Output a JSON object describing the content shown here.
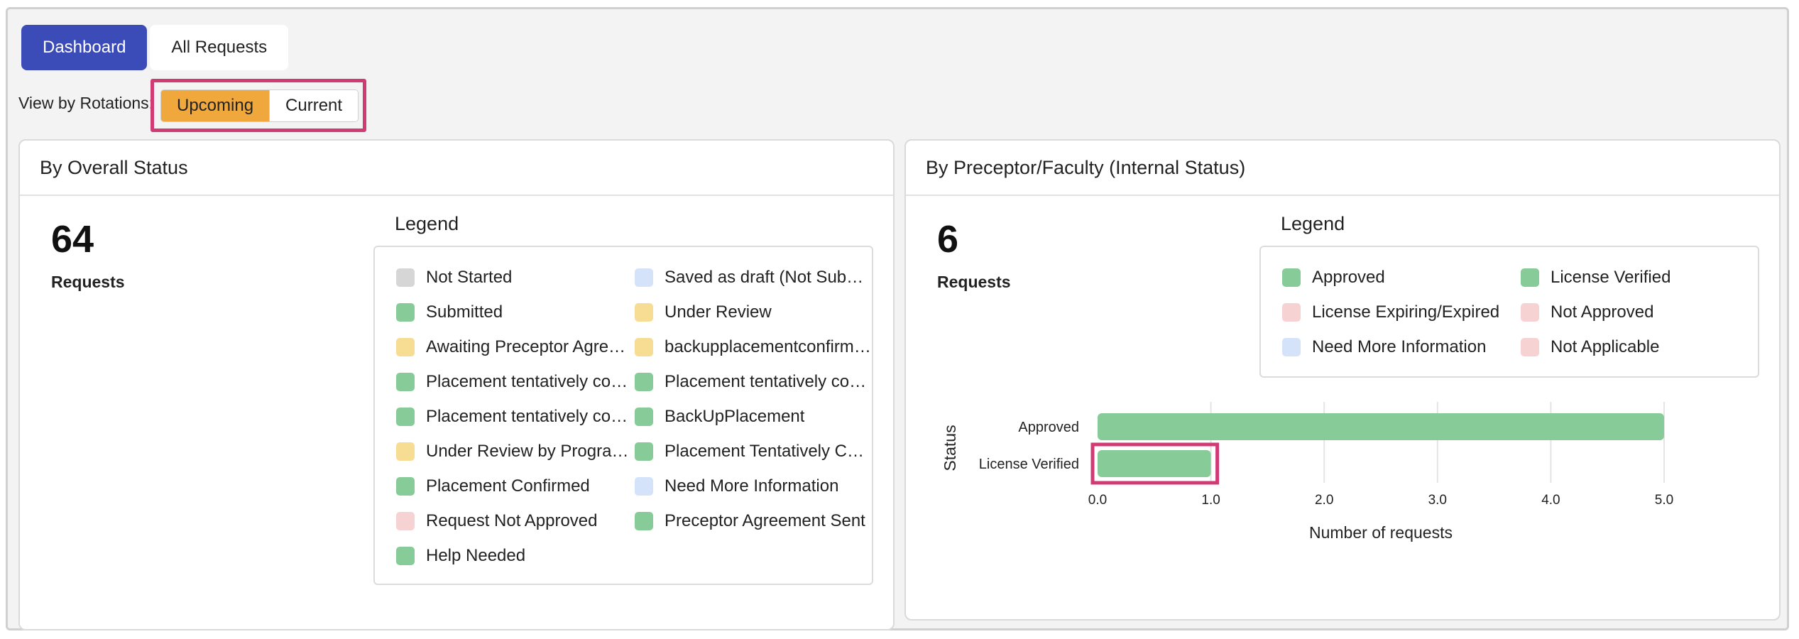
{
  "tabs": [
    {
      "label": "Dashboard",
      "active": true
    },
    {
      "label": "All Requests",
      "active": false
    }
  ],
  "rotations": {
    "label": "View by Rotations:",
    "options": [
      {
        "label": "Upcoming",
        "selected": true
      },
      {
        "label": "Current",
        "selected": false
      }
    ]
  },
  "colors": {
    "accent": "#3b4cb8",
    "selected": "#f0a73c",
    "highlight": "#d13b74",
    "green": "#86cb98",
    "yellow": "#f7dc94",
    "grey": "#d6d6d6",
    "blue": "#d4e3fa",
    "pink": "#f6d2d2"
  },
  "overall": {
    "title": "By Overall Status",
    "count": "64",
    "count_label": "Requests",
    "legend_title": "Legend",
    "legend": [
      {
        "label": "Not Started",
        "color": "#d6d6d6"
      },
      {
        "label": "Saved as draft (Not Submi…",
        "color": "#d4e3fa"
      },
      {
        "label": "Submitted",
        "color": "#86cb98"
      },
      {
        "label": "Under Review",
        "color": "#f7dc94"
      },
      {
        "label": "Awaiting Preceptor Agree…",
        "color": "#f7dc94"
      },
      {
        "label": "backupplacementconfirmed",
        "color": "#f7dc94"
      },
      {
        "label": "Placement tentatively con…",
        "color": "#86cb98"
      },
      {
        "label": "Placement tentatively con…",
        "color": "#86cb98"
      },
      {
        "label": "Placement tentatively con…",
        "color": "#86cb98"
      },
      {
        "label": "BackUpPlacement",
        "color": "#86cb98"
      },
      {
        "label": "Under Review by Program…",
        "color": "#f7dc94"
      },
      {
        "label": "Placement Tentatively Co…",
        "color": "#86cb98"
      },
      {
        "label": "Placement Confirmed",
        "color": "#86cb98"
      },
      {
        "label": "Need More Information",
        "color": "#d4e3fa"
      },
      {
        "label": "Request Not Approved",
        "color": "#f6d2d2"
      },
      {
        "label": "Preceptor Agreement Sent",
        "color": "#86cb98"
      },
      {
        "label": "Help Needed",
        "color": "#86cb98"
      }
    ]
  },
  "preceptor": {
    "title": "By Preceptor/Faculty (Internal Status)",
    "count": "6",
    "count_label": "Requests",
    "legend_title": "Legend",
    "legend": [
      {
        "label": "Approved",
        "color": "#86cb98"
      },
      {
        "label": "License Verified",
        "color": "#86cb98"
      },
      {
        "label": "License Expiring/Expired",
        "color": "#f6d2d2"
      },
      {
        "label": "Not Approved",
        "color": "#f6d2d2"
      },
      {
        "label": "Need More Information",
        "color": "#d4e3fa"
      },
      {
        "label": "Not Applicable",
        "color": "#f6d2d2"
      }
    ]
  },
  "chart_data": {
    "type": "bar",
    "orientation": "horizontal",
    "categories": [
      "Approved",
      "License Verified"
    ],
    "values": [
      5,
      1
    ],
    "xlabel": "Number of requests",
    "ylabel": "Status",
    "xlim": [
      0,
      5
    ],
    "xticks": [
      "0.0",
      "1.0",
      "2.0",
      "3.0",
      "4.0",
      "5.0"
    ],
    "grid": true,
    "bar_color": "#86cb98"
  }
}
